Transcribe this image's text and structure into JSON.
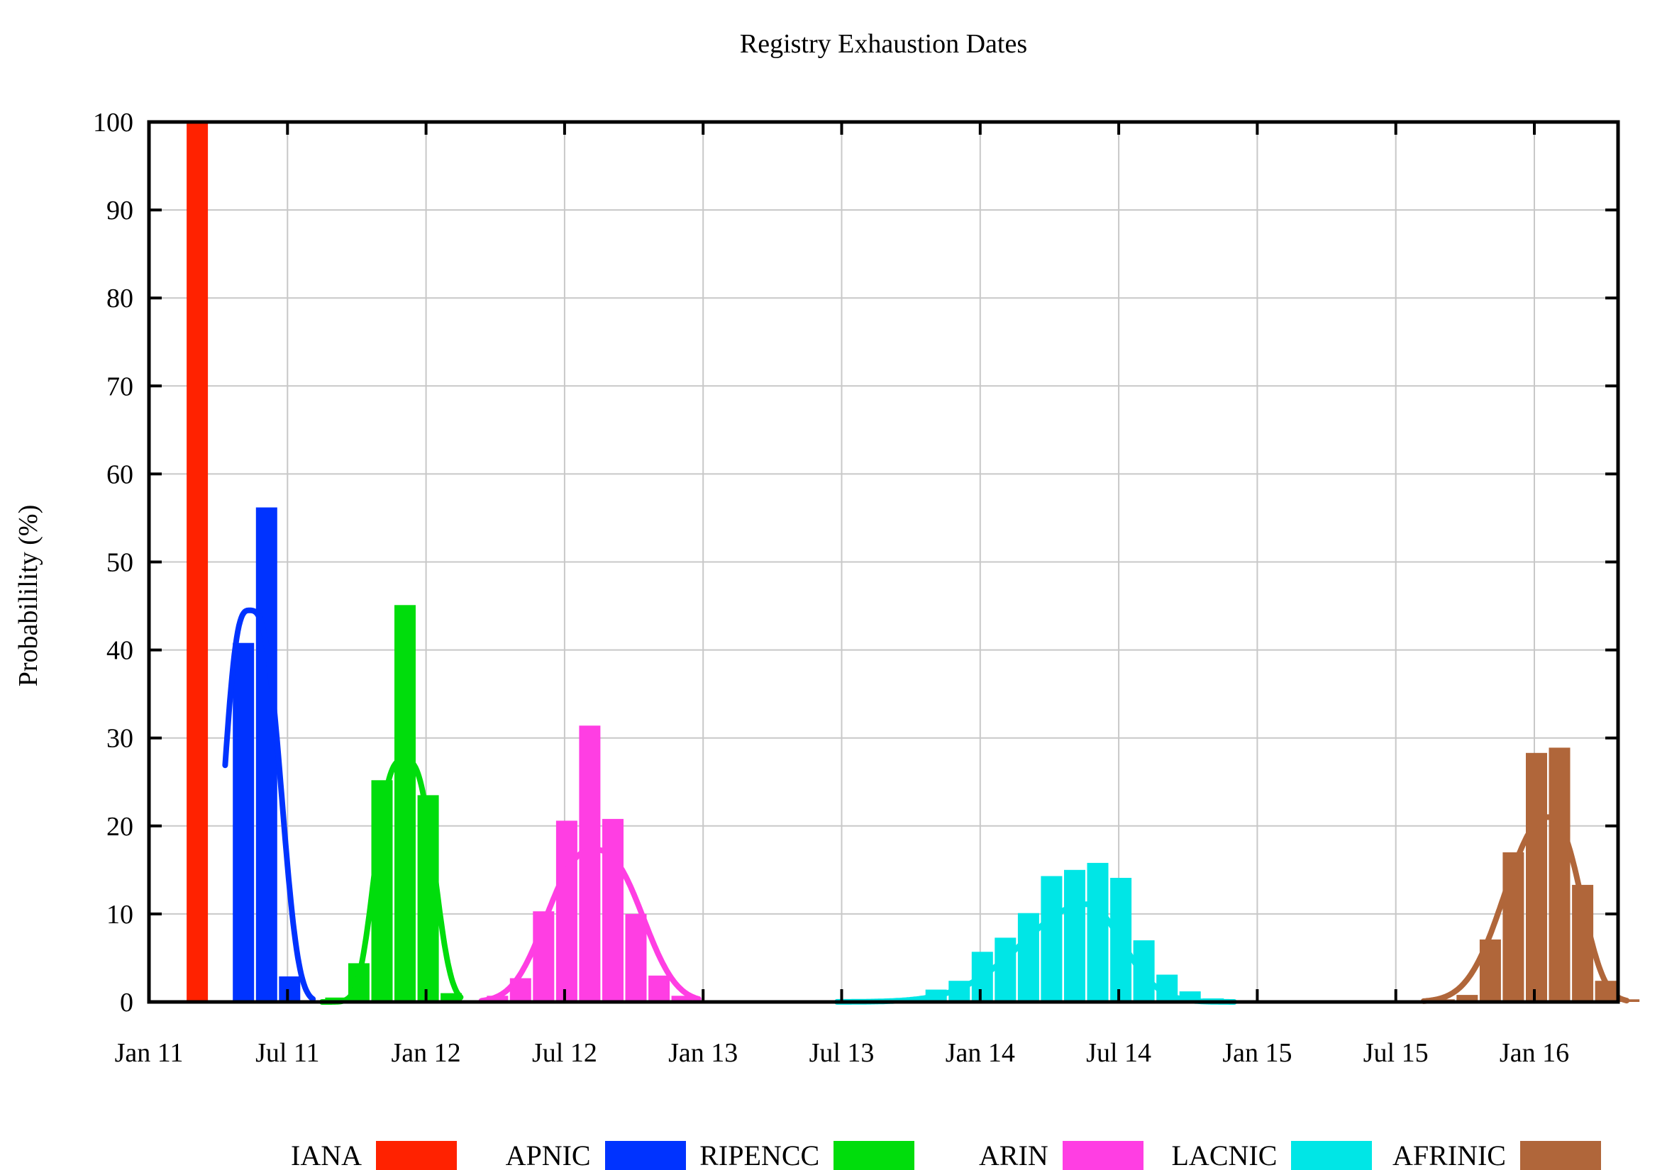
{
  "title": "Registry Exhaustion Dates",
  "ylabel": "Probabilility (%)",
  "chart_data": {
    "type": "bar",
    "title": "Registry Exhaustion Dates",
    "xlabel": "",
    "ylabel": "Probabilility (%)",
    "ylim": [
      0,
      100
    ],
    "y_tick_step": 10,
    "y_tick_labels": [
      "0",
      "10",
      "20",
      "30",
      "40",
      "50",
      "60",
      "70",
      "80",
      "90",
      "100"
    ],
    "x_unit": "months since Jan 2011",
    "xlim": [
      0,
      63.6
    ],
    "x_ticks": [
      {
        "m": 0,
        "label": "Jan 11"
      },
      {
        "m": 6,
        "label": "Jul 11"
      },
      {
        "m": 12,
        "label": "Jan 12"
      },
      {
        "m": 18,
        "label": "Jul 12"
      },
      {
        "m": 24,
        "label": "Jan 13"
      },
      {
        "m": 30,
        "label": "Jul 13"
      },
      {
        "m": 36,
        "label": "Jan 14"
      },
      {
        "m": 42,
        "label": "Jul 14"
      },
      {
        "m": 48,
        "label": "Jan 15"
      },
      {
        "m": 54,
        "label": "Jul 15"
      },
      {
        "m": 60,
        "label": "Jan 16"
      }
    ],
    "grid": true,
    "grid_color": "#c8c8c8",
    "axis_color": "#000000",
    "legend_position": "bottom-center",
    "series": [
      {
        "name": "IANA",
        "color": "#ff2200",
        "bars": [
          [
            2,
            100
          ]
        ],
        "curve": null
      },
      {
        "name": "APNIC",
        "color": "#0033ff",
        "bars": [
          [
            4,
            40.8
          ],
          [
            5,
            56.2
          ],
          [
            6,
            2.9
          ]
        ],
        "curve": {
          "mu": 4.35,
          "peak": 44.5,
          "sigma_left": 1.32,
          "p_left": 3,
          "sigma_right": 1.62,
          "p_right": 3,
          "range": [
            3.3,
            7.1
          ]
        }
      },
      {
        "name": "RIPENCC",
        "color": "#00dd0c",
        "bars": [
          [
            8,
            0.5
          ],
          [
            9,
            4.4
          ],
          [
            10,
            25.2
          ],
          [
            11,
            45.1
          ],
          [
            12,
            23.5
          ],
          [
            13,
            1.0
          ]
        ],
        "curve": {
          "mu": 11.05,
          "peak": 27.5,
          "sigma_left": 1.5,
          "p_left": 3,
          "sigma_right": 1.55,
          "p_right": 3,
          "range": [
            7.5,
            13.5
          ]
        }
      },
      {
        "name": "ARIN",
        "color": "#ff3ee3",
        "bars": [
          [
            15,
            0.7
          ],
          [
            16,
            2.7
          ],
          [
            17,
            10.3
          ],
          [
            18,
            20.6
          ],
          [
            19,
            31.4
          ],
          [
            20,
            20.8
          ],
          [
            21,
            10.0
          ],
          [
            22,
            3.0
          ],
          [
            23,
            0.7
          ]
        ],
        "curve": {
          "mu": 19.3,
          "peak": 17.3,
          "sigma_left": 2.6,
          "p_left": 2.5,
          "sigma_right": 2.6,
          "p_right": 2.5,
          "range": [
            14.4,
            23.8
          ]
        }
      },
      {
        "name": "LACNIC",
        "color": "#00e6e6",
        "bars": [
          [
            33,
            0.4
          ],
          [
            34,
            1.4
          ],
          [
            35,
            2.4
          ],
          [
            36,
            5.7
          ],
          [
            37,
            7.3
          ],
          [
            38,
            10.1
          ],
          [
            39,
            14.3
          ],
          [
            40,
            15.0
          ],
          [
            41,
            15.8
          ],
          [
            42,
            14.1
          ],
          [
            43,
            7.0
          ],
          [
            44,
            3.1
          ],
          [
            45,
            1.2
          ],
          [
            46,
            0.4
          ]
        ],
        "curve": {
          "mu": 40.6,
          "peak": 11.1,
          "sigma_left": 3.9,
          "p_left": 2,
          "sigma_right": 2.2,
          "p_right": 2,
          "range": [
            29.8,
            47.0
          ]
        }
      },
      {
        "name": "AFRINIC",
        "color": "#b0663a",
        "bars": [
          [
            56,
            0.3
          ],
          [
            57,
            0.8
          ],
          [
            58,
            7.1
          ],
          [
            59,
            17.0
          ],
          [
            60,
            28.3
          ],
          [
            61,
            28.9
          ],
          [
            62,
            13.3
          ],
          [
            63,
            2.4
          ],
          [
            64,
            0.3
          ]
        ],
        "curve": {
          "mu": 60.6,
          "peak": 21.0,
          "sigma_left": 2.5,
          "p_left": 2.2,
          "sigma_right": 1.8,
          "p_right": 2.5,
          "range": [
            55.2,
            64.0
          ]
        }
      }
    ]
  }
}
